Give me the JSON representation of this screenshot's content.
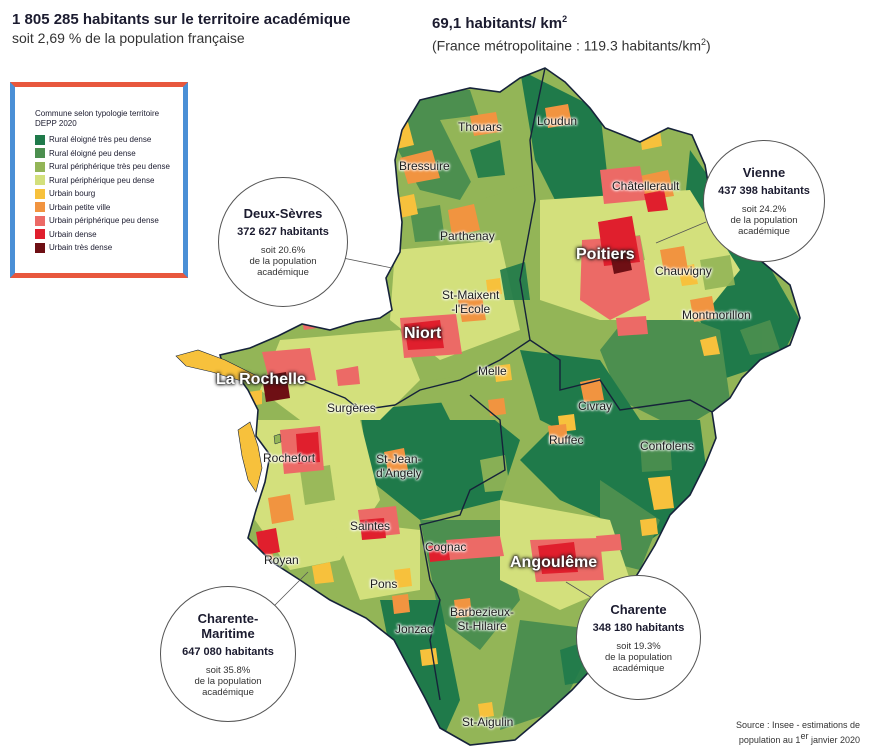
{
  "header": {
    "population": "1 805 285 habitants sur le territoire académique",
    "population_share": "soit 2,69 % de la population française",
    "density": "69,1 habitants/ km",
    "density_exp": "2",
    "density_ref": "(France métropolitaine : 119.3 habitants/km",
    "density_ref_exp": "2",
    "density_ref_close": ")"
  },
  "legend": {
    "title_line1": "Commune selon typologie territoire",
    "title_line2": "DEPP 2020",
    "items": [
      {
        "label": "Rural éloigné très peu dense",
        "color": "#1f7a4a"
      },
      {
        "label": "Rural éloigné peu dense",
        "color": "#4c8f4f"
      },
      {
        "label": "Rural périphérique très peu dense",
        "color": "#93b557"
      },
      {
        "label": "Rural périphérique peu dense",
        "color": "#d3e07c"
      },
      {
        "label": "Urbain bourg",
        "color": "#f7c13c"
      },
      {
        "label": "Urbain petite ville",
        "color": "#f19440"
      },
      {
        "label": "Urbain périphérique peu dense",
        "color": "#ec6a66"
      },
      {
        "label": "Urbain dense",
        "color": "#e01f2d"
      },
      {
        "label": "Urbain très dense",
        "color": "#6e0f14"
      }
    ]
  },
  "towns": {
    "thouars": "Thouars",
    "loudun": "Loudun",
    "bressuire": "Bressuire",
    "chatellerault": "Châtellerault",
    "parthenay": "Parthenay",
    "poitiers": "Poitiers",
    "chauvigny": "Chauvigny",
    "st_maixent": "St-Maixent",
    "st_maixent_2": "-l'Ecole",
    "montmorillon": "Montmorillon",
    "niort": "Niort",
    "la_rochelle": "La Rochelle",
    "melle": "Melle",
    "surgeres": "Surgères",
    "civray": "Civray",
    "ruffec": "Ruffec",
    "confolens": "Confolens",
    "rochefort": "Rochefort",
    "st_jean": "St-Jean-",
    "st_jean_2": "d'Angely",
    "saintes": "Saintes",
    "cognac": "Cognac",
    "angouleme": "Angoulême",
    "royan": "Royan",
    "pons": "Pons",
    "barbezieux": "Barbezieux-",
    "barbezieux_2": "St-Hilaire",
    "jonzac": "Jonzac",
    "st_aigulin": "St-Aigulin"
  },
  "departments": {
    "vienne": {
      "name": "Vienne",
      "population": "437 398 habitants",
      "share_1": "soit 24.2%",
      "share_2": "de la population",
      "share_3": "académique"
    },
    "deux_sevres": {
      "name": "Deux-Sèvres",
      "population": "372 627 habitants",
      "share_1": "soit 20.6%",
      "share_2": "de la population",
      "share_3": "académique"
    },
    "charente": {
      "name": "Charente",
      "population": "348 180 habitants",
      "share_1": "soit 19.3%",
      "share_2": "de la population",
      "share_3": "académique"
    },
    "charente_maritime": {
      "name_1": "Charente-",
      "name_2": "Maritime",
      "population": "647 080 habitants",
      "share_1": "soit 35.8%",
      "share_2": "de la population",
      "share_3": "académique"
    }
  },
  "source": {
    "line1": "Source : Insee - estimations de",
    "line2": "population au 1",
    "line2_exp": "er",
    "line2_end": " janvier 2020"
  }
}
